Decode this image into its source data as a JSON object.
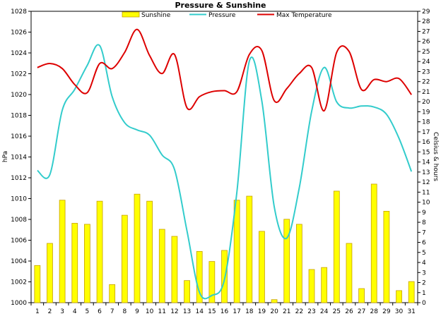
{
  "chart_data": {
    "type": "bar+line",
    "title": "Pressure & Sunshine",
    "categories": [
      "1",
      "2",
      "3",
      "4",
      "5",
      "6",
      "7",
      "8",
      "9",
      "10",
      "11",
      "12",
      "13",
      "14",
      "15",
      "16",
      "17",
      "18",
      "19",
      "20",
      "21",
      "22",
      "23",
      "24",
      "25",
      "26",
      "27",
      "28",
      "29",
      "30",
      "31"
    ],
    "left_axis": {
      "label": "hPa",
      "ylim": [
        1000,
        1028
      ],
      "ticks": [
        "1000",
        "1002",
        "1004",
        "1006",
        "1008",
        "1010",
        "1012",
        "1014",
        "1016",
        "1018",
        "1020",
        "1022",
        "1024",
        "1026",
        "1028"
      ]
    },
    "right_axis": {
      "label": "Celsius & hours",
      "ylim": [
        0,
        29
      ],
      "ticks": [
        "0",
        "1",
        "2",
        "3",
        "4",
        "5",
        "6",
        "7",
        "8",
        "9",
        "10",
        "11",
        "12",
        "13",
        "14",
        "15",
        "16",
        "17",
        "18",
        "19",
        "20",
        "21",
        "22",
        "23",
        "24",
        "25",
        "26",
        "27",
        "28",
        "29"
      ]
    },
    "grid": false,
    "legend_placement": "top",
    "series": [
      {
        "name": "Sunshine",
        "kind": "bar",
        "axis": "right",
        "color": "#ffff00",
        "edge_color": "#c8a000",
        "values": [
          3.7,
          5.9,
          10.2,
          7.9,
          7.8,
          10.1,
          1.8,
          8.7,
          10.8,
          10.1,
          7.3,
          6.6,
          2.2,
          5.1,
          4.1,
          5.2,
          10.2,
          10.6,
          7.1,
          0.3,
          8.3,
          7.8,
          3.3,
          3.5,
          11.1,
          5.9,
          1.4,
          11.8,
          9.1,
          1.2,
          2.1
        ]
      },
      {
        "name": "Pressure",
        "kind": "line",
        "axis": "left",
        "color": "#33cccc",
        "values": [
          1012.7,
          1012.3,
          1018.5,
          1020.5,
          1022.8,
          1024.7,
          1019.8,
          1017.3,
          1016.6,
          1016.1,
          1014.2,
          1012.8,
          1006.9,
          1001.0,
          1000.7,
          1002.2,
          1010.6,
          1023.2,
          1019.4,
          1009.2,
          1006.2,
          1011.0,
          1018.4,
          1022.6,
          1019.3,
          1018.7,
          1018.9,
          1018.8,
          1018.1,
          1015.8,
          1012.6
        ]
      },
      {
        "name": "Max Temperature",
        "kind": "line",
        "axis": "right",
        "color": "#dd0000",
        "values": [
          23.4,
          23.8,
          23.3,
          21.7,
          20.9,
          23.8,
          23.3,
          24.9,
          27.2,
          24.6,
          22.8,
          24.7,
          19.4,
          20.5,
          21.0,
          21.1,
          21.0,
          24.7,
          25.1,
          20.1,
          21.3,
          22.8,
          23.4,
          19.1,
          24.9,
          25.0,
          21.2,
          22.2,
          22.0,
          22.3,
          20.7
        ]
      }
    ]
  }
}
